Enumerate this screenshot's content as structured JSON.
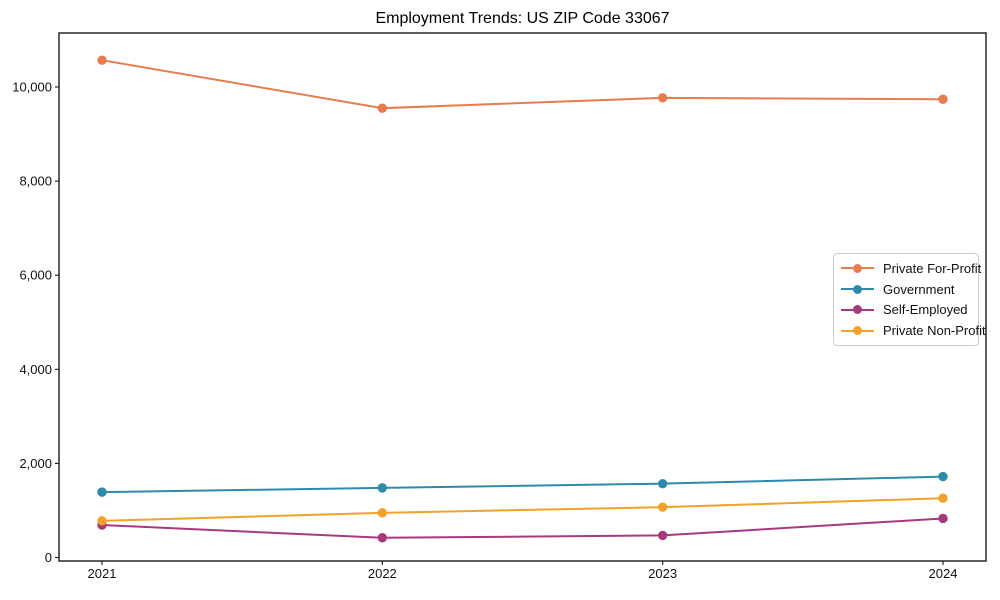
{
  "chart_data": {
    "type": "line",
    "title": "Employment Trends: US ZIP Code 33067",
    "xlabel": "",
    "ylabel": "",
    "categories": [
      "2021",
      "2022",
      "2023",
      "2024"
    ],
    "series": [
      {
        "name": "Private For-Profit",
        "color": "#e87c4d",
        "values": [
          10570,
          9550,
          9770,
          9740
        ]
      },
      {
        "name": "Government",
        "color": "#2e8aab",
        "values": [
          1390,
          1480,
          1570,
          1720
        ]
      },
      {
        "name": "Self-Employed",
        "color": "#a63a7c",
        "values": [
          690,
          420,
          470,
          830
        ]
      },
      {
        "name": "Private Non-Profit",
        "color": "#f2a12d",
        "values": [
          780,
          950,
          1070,
          1260
        ]
      }
    ],
    "yticks": [
      0,
      2000,
      4000,
      6000,
      8000,
      10000
    ],
    "ytick_labels": [
      "0",
      "2,000",
      "4,000",
      "6,000",
      "8,000",
      "10,000"
    ],
    "ylim": [
      -74,
      11148
    ],
    "grid": false,
    "legend_position": "center right",
    "marker": "circle",
    "axis_color": "#1a1a1a"
  }
}
